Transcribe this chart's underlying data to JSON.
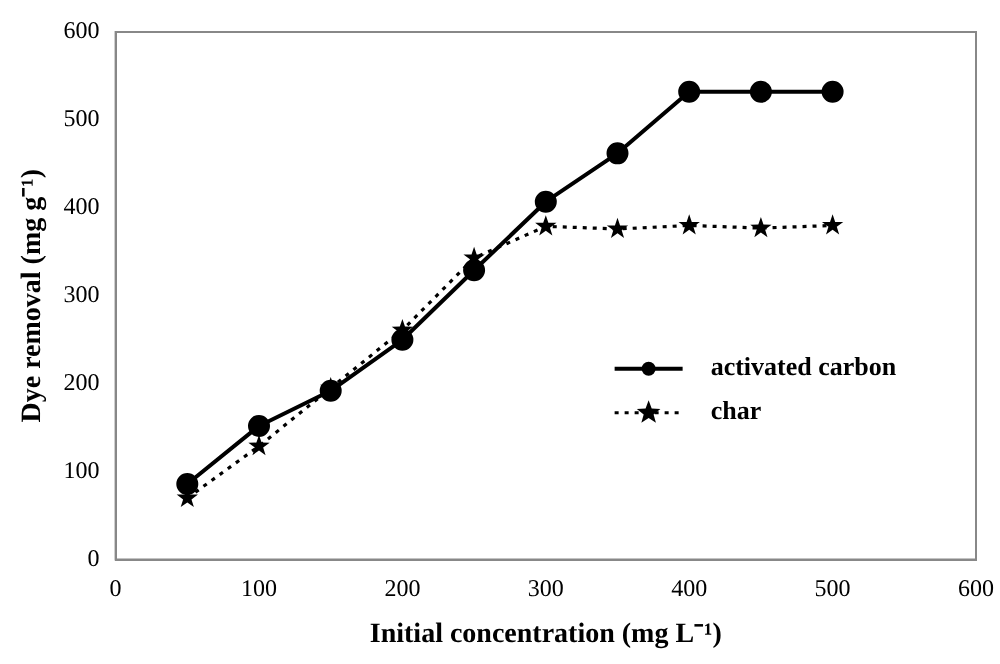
{
  "chart_data": {
    "type": "line",
    "xlabel": "Initial concentration (mg L⁻¹)",
    "ylabel": "Dye removal (mg g⁻¹)",
    "x": [
      50,
      100,
      150,
      200,
      250,
      300,
      350,
      400,
      450,
      500
    ],
    "series": [
      {
        "name": "activated carbon",
        "color": "#000000",
        "marker": "circle",
        "line_style": "solid",
        "values": [
          86,
          152,
          192,
          250,
          329,
          407,
          462,
          532,
          532,
          532
        ]
      },
      {
        "name": "char",
        "color": "#000000",
        "marker": "star",
        "line_style": "dotted",
        "values": [
          70,
          129,
          195,
          261,
          343,
          379,
          376,
          380,
          377,
          380
        ]
      }
    ],
    "xlim": [
      0,
      600
    ],
    "xticks": [
      0,
      100,
      200,
      300,
      400,
      500,
      600
    ],
    "ylim": [
      0,
      600
    ],
    "yticks": [
      0,
      100,
      200,
      300,
      400,
      500,
      600
    ],
    "grid": false,
    "legend": "right"
  }
}
